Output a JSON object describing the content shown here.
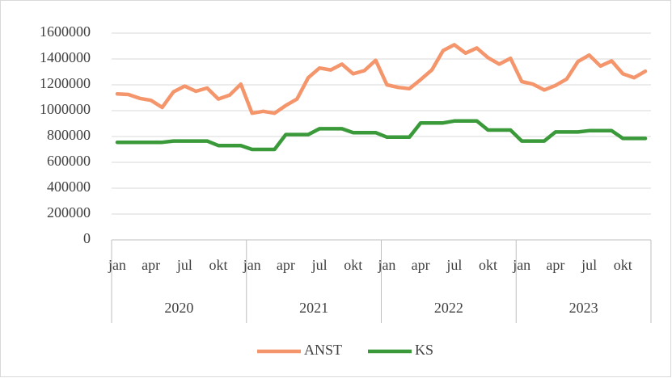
{
  "chart_data": {
    "type": "line",
    "categories": [
      "jan",
      null,
      null,
      "apr",
      null,
      null,
      "jul",
      null,
      null,
      "okt",
      null,
      null,
      "jan",
      null,
      null,
      "apr",
      null,
      null,
      "jul",
      null,
      null,
      "okt",
      null,
      null,
      "jan",
      null,
      null,
      "apr",
      null,
      null,
      "jul",
      null,
      null,
      "okt",
      null,
      null,
      "jan",
      null,
      null,
      "apr",
      null,
      null,
      "jul",
      null,
      null,
      "okt",
      null,
      null
    ],
    "category_groups": [
      "2020",
      "2021",
      "2022",
      "2023"
    ],
    "series": [
      {
        "name": "ANST",
        "color": "#f4956b",
        "values": [
          1130000,
          1125000,
          1095000,
          1080000,
          1025000,
          1145000,
          1190000,
          1150000,
          1175000,
          1090000,
          1120000,
          1205000,
          980000,
          995000,
          980000,
          1040000,
          1090000,
          1255000,
          1330000,
          1315000,
          1360000,
          1285000,
          1310000,
          1390000,
          1200000,
          1180000,
          1170000,
          1240000,
          1315000,
          1465000,
          1510000,
          1445000,
          1485000,
          1410000,
          1360000,
          1405000,
          1225000,
          1205000,
          1160000,
          1195000,
          1245000,
          1380000,
          1430000,
          1345000,
          1385000,
          1285000,
          1255000,
          1305000
        ]
      },
      {
        "name": "KS",
        "color": "#3a9a3a",
        "values": [
          755000,
          755000,
          755000,
          755000,
          755000,
          765000,
          765000,
          765000,
          765000,
          730000,
          730000,
          730000,
          700000,
          700000,
          700000,
          815000,
          815000,
          815000,
          860000,
          860000,
          860000,
          830000,
          830000,
          830000,
          795000,
          795000,
          795000,
          905000,
          905000,
          905000,
          920000,
          920000,
          920000,
          850000,
          850000,
          850000,
          765000,
          765000,
          765000,
          835000,
          835000,
          835000,
          845000,
          845000,
          845000,
          785000,
          785000,
          785000
        ]
      }
    ],
    "ylim": [
      0,
      1600000
    ],
    "yticks": [
      0,
      200000,
      400000,
      600000,
      800000,
      1000000,
      1200000,
      1400000,
      1600000
    ],
    "grid": true,
    "legend": "bottom"
  }
}
